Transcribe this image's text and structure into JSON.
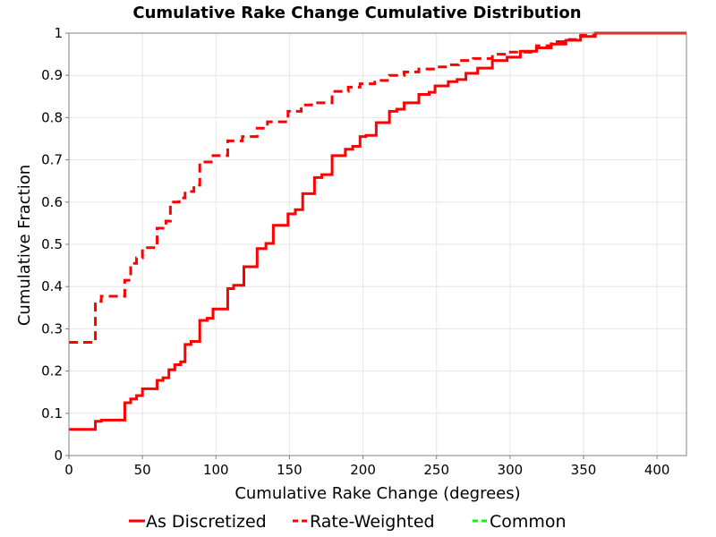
{
  "chart_data": {
    "type": "line",
    "title": "Cumulative Rake Change Cumulative Distribution",
    "xlabel": "Cumulative Rake Change (degrees)",
    "ylabel": "Cumulative Fraction",
    "xlim": [
      0,
      420
    ],
    "ylim": [
      0,
      1
    ],
    "x_ticks": [
      "0",
      "50",
      "100",
      "150",
      "200",
      "250",
      "300",
      "350",
      "400"
    ],
    "y_ticks": [
      "0",
      "0.1",
      "0.2",
      "0.3",
      "0.4",
      "0.5",
      "0.6",
      "0.7",
      "0.8",
      "0.9",
      "1"
    ],
    "grid": true,
    "legend_position": "bottom",
    "series": [
      {
        "name": "As Discretized",
        "color": "#ff0000",
        "line_style": "solid",
        "step": true,
        "points": [
          [
            0,
            0.062
          ],
          [
            18,
            0.062
          ],
          [
            18,
            0.081
          ],
          [
            22,
            0.081
          ],
          [
            22,
            0.084
          ],
          [
            38,
            0.084
          ],
          [
            38,
            0.125
          ],
          [
            42,
            0.125
          ],
          [
            42,
            0.134
          ],
          [
            46,
            0.134
          ],
          [
            46,
            0.142
          ],
          [
            50,
            0.142
          ],
          [
            50,
            0.158
          ],
          [
            60,
            0.158
          ],
          [
            60,
            0.178
          ],
          [
            64,
            0.178
          ],
          [
            64,
            0.184
          ],
          [
            68,
            0.184
          ],
          [
            68,
            0.203
          ],
          [
            72,
            0.203
          ],
          [
            72,
            0.215
          ],
          [
            76,
            0.215
          ],
          [
            76,
            0.222
          ],
          [
            79,
            0.222
          ],
          [
            79,
            0.263
          ],
          [
            83,
            0.263
          ],
          [
            83,
            0.27
          ],
          [
            89,
            0.27
          ],
          [
            89,
            0.32
          ],
          [
            94,
            0.32
          ],
          [
            94,
            0.325
          ],
          [
            98,
            0.325
          ],
          [
            98,
            0.347
          ],
          [
            108,
            0.347
          ],
          [
            108,
            0.395
          ],
          [
            112,
            0.395
          ],
          [
            112,
            0.403
          ],
          [
            119,
            0.403
          ],
          [
            119,
            0.447
          ],
          [
            128,
            0.447
          ],
          [
            128,
            0.49
          ],
          [
            134,
            0.49
          ],
          [
            134,
            0.502
          ],
          [
            139,
            0.502
          ],
          [
            139,
            0.545
          ],
          [
            149,
            0.545
          ],
          [
            149,
            0.572
          ],
          [
            154,
            0.572
          ],
          [
            154,
            0.582
          ],
          [
            159,
            0.582
          ],
          [
            159,
            0.62
          ],
          [
            167,
            0.62
          ],
          [
            167,
            0.658
          ],
          [
            172,
            0.658
          ],
          [
            172,
            0.665
          ],
          [
            179,
            0.665
          ],
          [
            179,
            0.71
          ],
          [
            188,
            0.71
          ],
          [
            188,
            0.725
          ],
          [
            193,
            0.725
          ],
          [
            193,
            0.732
          ],
          [
            198,
            0.732
          ],
          [
            198,
            0.755
          ],
          [
            202,
            0.755
          ],
          [
            202,
            0.758
          ],
          [
            209,
            0.758
          ],
          [
            209,
            0.788
          ],
          [
            218,
            0.788
          ],
          [
            218,
            0.815
          ],
          [
            223,
            0.815
          ],
          [
            223,
            0.82
          ],
          [
            228,
            0.82
          ],
          [
            228,
            0.835
          ],
          [
            238,
            0.835
          ],
          [
            238,
            0.855
          ],
          [
            245,
            0.855
          ],
          [
            245,
            0.86
          ],
          [
            249,
            0.86
          ],
          [
            249,
            0.875
          ],
          [
            258,
            0.875
          ],
          [
            258,
            0.885
          ],
          [
            264,
            0.885
          ],
          [
            264,
            0.89
          ],
          [
            270,
            0.89
          ],
          [
            270,
            0.905
          ],
          [
            278,
            0.905
          ],
          [
            278,
            0.917
          ],
          [
            288,
            0.917
          ],
          [
            288,
            0.935
          ],
          [
            298,
            0.935
          ],
          [
            298,
            0.943
          ],
          [
            307,
            0.943
          ],
          [
            307,
            0.957
          ],
          [
            318,
            0.957
          ],
          [
            318,
            0.965
          ],
          [
            328,
            0.965
          ],
          [
            328,
            0.974
          ],
          [
            338,
            0.974
          ],
          [
            338,
            0.983
          ],
          [
            348,
            0.983
          ],
          [
            348,
            0.992
          ],
          [
            358,
            0.992
          ],
          [
            358,
            1.0
          ],
          [
            420,
            1.0
          ]
        ]
      },
      {
        "name": "Rate-Weighted",
        "color": "#ff0000",
        "line_style": "dashed",
        "step": true,
        "points": [
          [
            0,
            0.268
          ],
          [
            18,
            0.268
          ],
          [
            18,
            0.365
          ],
          [
            22,
            0.365
          ],
          [
            22,
            0.377
          ],
          [
            38,
            0.377
          ],
          [
            38,
            0.415
          ],
          [
            42,
            0.415
          ],
          [
            42,
            0.455
          ],
          [
            46,
            0.455
          ],
          [
            46,
            0.468
          ],
          [
            50,
            0.468
          ],
          [
            50,
            0.492
          ],
          [
            60,
            0.492
          ],
          [
            60,
            0.538
          ],
          [
            66,
            0.538
          ],
          [
            66,
            0.555
          ],
          [
            69,
            0.555
          ],
          [
            69,
            0.6
          ],
          [
            75,
            0.6
          ],
          [
            75,
            0.61
          ],
          [
            79,
            0.61
          ],
          [
            79,
            0.625
          ],
          [
            85,
            0.625
          ],
          [
            85,
            0.64
          ],
          [
            89,
            0.64
          ],
          [
            89,
            0.695
          ],
          [
            98,
            0.695
          ],
          [
            98,
            0.71
          ],
          [
            108,
            0.71
          ],
          [
            108,
            0.745
          ],
          [
            118,
            0.745
          ],
          [
            118,
            0.755
          ],
          [
            128,
            0.755
          ],
          [
            128,
            0.775
          ],
          [
            135,
            0.775
          ],
          [
            135,
            0.79
          ],
          [
            149,
            0.79
          ],
          [
            149,
            0.815
          ],
          [
            158,
            0.815
          ],
          [
            158,
            0.83
          ],
          [
            165,
            0.83
          ],
          [
            165,
            0.835
          ],
          [
            179,
            0.835
          ],
          [
            179,
            0.862
          ],
          [
            190,
            0.862
          ],
          [
            190,
            0.872
          ],
          [
            198,
            0.872
          ],
          [
            198,
            0.88
          ],
          [
            208,
            0.88
          ],
          [
            208,
            0.888
          ],
          [
            218,
            0.888
          ],
          [
            218,
            0.9
          ],
          [
            228,
            0.9
          ],
          [
            228,
            0.908
          ],
          [
            238,
            0.908
          ],
          [
            238,
            0.915
          ],
          [
            248,
            0.915
          ],
          [
            248,
            0.92
          ],
          [
            258,
            0.92
          ],
          [
            258,
            0.925
          ],
          [
            265,
            0.925
          ],
          [
            265,
            0.935
          ],
          [
            275,
            0.935
          ],
          [
            275,
            0.94
          ],
          [
            288,
            0.94
          ],
          [
            288,
            0.95
          ],
          [
            298,
            0.95
          ],
          [
            298,
            0.955
          ],
          [
            318,
            0.955
          ],
          [
            318,
            0.97
          ],
          [
            328,
            0.97
          ],
          [
            328,
            0.98
          ],
          [
            338,
            0.98
          ],
          [
            338,
            0.985
          ],
          [
            348,
            0.985
          ],
          [
            348,
            0.995
          ],
          [
            358,
            0.995
          ],
          [
            358,
            1.0
          ],
          [
            420,
            1.0
          ]
        ]
      },
      {
        "name": "Common",
        "color": "#00ff00",
        "line_style": "dashed",
        "step": true,
        "points": []
      }
    ]
  }
}
